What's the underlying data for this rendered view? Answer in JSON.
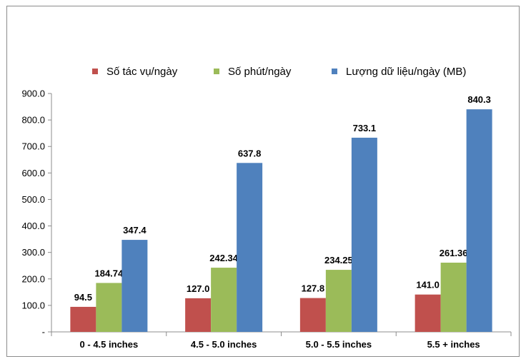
{
  "chart_data": {
    "type": "bar",
    "title": "",
    "xlabel": "",
    "ylabel": "",
    "ylim": [
      0,
      900
    ],
    "yticks": [
      "-",
      "100.0",
      "200.0",
      "300.0",
      "400.0",
      "500.0",
      "600.0",
      "700.0",
      "800.0",
      "900.0"
    ],
    "categories": [
      "0 - 4.5 inches",
      "4.5 - 5.0 inches",
      "5.0 - 5.5 inches",
      "5.5 + inches"
    ],
    "legend_position": "top",
    "series": [
      {
        "name": "Số tác vụ/ngày",
        "color": "#c0504d",
        "values": [
          94.5,
          127.0,
          127.8,
          141.0
        ],
        "labels": [
          "94.5",
          "127.0",
          "127.8",
          "141.0"
        ]
      },
      {
        "name": "Số phút/ngày",
        "color": "#9bbb59",
        "values": [
          184.74,
          242.34,
          234.25,
          261.36
        ],
        "labels": [
          "184.74",
          "242.34",
          "234.25",
          "261.36"
        ]
      },
      {
        "name": "Lượng dữ liệu/ngày (MB)",
        "color": "#4f81bd",
        "values": [
          347.4,
          637.8,
          733.1,
          840.3
        ],
        "labels": [
          "347.4",
          "637.8",
          "733.1",
          "840.3"
        ]
      }
    ]
  }
}
